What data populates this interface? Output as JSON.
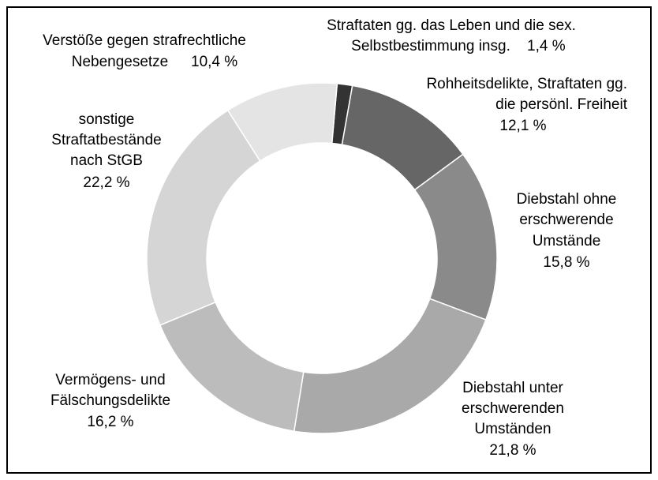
{
  "chart_data": {
    "type": "donut",
    "categories": [
      "Straftaten gg. das Leben und die sex. Selbstbestimmung insg.",
      "Rohheitsdelikte, Straftaten gg. die persönl. Freiheit",
      "Diebstahl ohne erschwerende Umstände",
      "Diebstahl unter erschwerenden Umständen",
      "Vermögens- und Fälschungsdelikte",
      "sonstige Straftatbestände nach StGB",
      "Verstöße gegen strafrechtliche Nebengesetze"
    ],
    "values": [
      1.4,
      12.1,
      15.8,
      21.8,
      16.2,
      22.2,
      10.4
    ],
    "value_labels": [
      "1,4 %",
      "12,1 %",
      "15,8 %",
      "21,8 %",
      "16,2 %",
      "22,2 %",
      "10,4 %"
    ],
    "colors": [
      "#333333",
      "#666666",
      "#8a8a8a",
      "#a9a9a9",
      "#bcbcbc",
      "#d5d5d5",
      "#e4e4e4"
    ]
  }
}
